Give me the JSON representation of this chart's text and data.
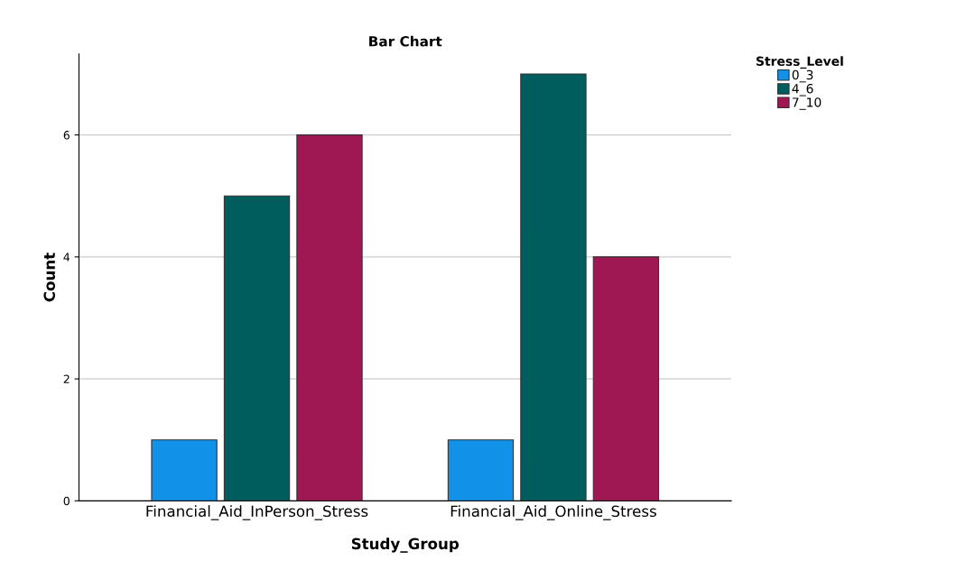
{
  "chart_data": {
    "type": "bar",
    "title": "Bar Chart",
    "xlabel": "Study_Group",
    "ylabel": "Count",
    "legend_title": "Stress_Level",
    "categories": [
      "Financial_Aid_InPerson_Stress",
      "Financial_Aid_Online_Stress"
    ],
    "series": [
      {
        "name": "0_3",
        "color": "#1192e8",
        "values": [
          1,
          1
        ]
      },
      {
        "name": "4_6",
        "color": "#005d5d",
        "values": [
          5,
          7
        ]
      },
      {
        "name": "7_10",
        "color": "#9f1853",
        "values": [
          6,
          4
        ]
      }
    ],
    "ylim": [
      0,
      7.33
    ],
    "yticks": [
      0,
      2,
      4,
      6
    ],
    "grid": "y",
    "legend": "top right"
  }
}
